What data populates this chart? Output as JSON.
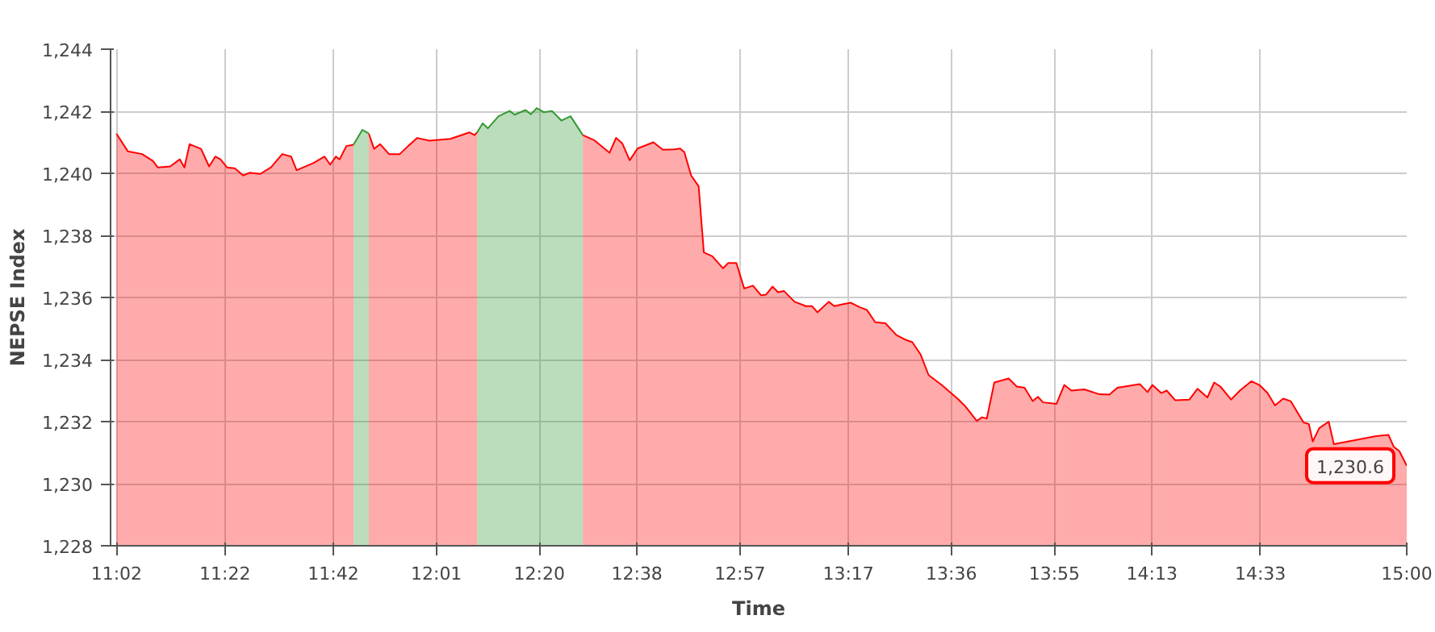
{
  "chart_data": {
    "type": "area",
    "xlabel": "Time",
    "ylabel": "NEPSE Index",
    "x": [
      11.033,
      11.068,
      11.112,
      11.145,
      11.16,
      11.198,
      11.228,
      11.242,
      11.258,
      11.293,
      11.318,
      11.337,
      11.353,
      11.373,
      11.397,
      11.423,
      11.443,
      11.475,
      11.508,
      11.543,
      11.57,
      11.587,
      11.638,
      11.673,
      11.69,
      11.708,
      11.719,
      11.74,
      11.762,
      11.789,
      11.809,
      11.825,
      11.844,
      11.871,
      11.904,
      11.93,
      11.958,
      11.995,
      12.06,
      12.118,
      12.134,
      12.142,
      12.159,
      12.175,
      12.208,
      12.242,
      12.257,
      12.291,
      12.307,
      12.325,
      12.347,
      12.372,
      12.401,
      12.429,
      12.467,
      12.503,
      12.549,
      12.569,
      12.588,
      12.611,
      12.635,
      12.684,
      12.713,
      12.749,
      12.766,
      12.779,
      12.8,
      12.823,
      12.839,
      12.865,
      12.898,
      12.914,
      12.939,
      12.963,
      12.99,
      13.015,
      13.03,
      13.05,
      13.067,
      13.085,
      13.118,
      13.153,
      13.172,
      13.188,
      13.223,
      13.24,
      13.265,
      13.291,
      13.317,
      13.34,
      13.366,
      13.397,
      13.431,
      13.456,
      13.48,
      13.505,
      13.53,
      13.57,
      13.619,
      13.644,
      13.678,
      13.694,
      13.709,
      13.732,
      13.776,
      13.801,
      13.825,
      13.85,
      13.866,
      13.882,
      13.923,
      13.947,
      13.969,
      14.008,
      14.055,
      14.086,
      14.11,
      14.133,
      14.179,
      14.203,
      14.218,
      14.245,
      14.262,
      14.288,
      14.332,
      14.357,
      14.387,
      14.408,
      14.427,
      14.46,
      14.487,
      14.522,
      14.547,
      14.572,
      14.595,
      14.62,
      14.643,
      14.683,
      14.699,
      14.711,
      14.731,
      14.76,
      14.776,
      14.906,
      14.944,
      14.96,
      14.977,
      15.0
    ],
    "series": [
      {
        "color": "#ff0000",
        "values": [
          1241.28,
          1240.71,
          1240.62,
          1240.4,
          1240.19,
          1240.22,
          1240.45,
          1240.19,
          1240.94,
          1240.79,
          1240.22,
          1240.54,
          1240.45,
          1240.19,
          1240.16,
          1239.93,
          1240.02,
          1239.98,
          1240.19,
          1240.62,
          1240.54,
          1240.1,
          1240.33,
          1240.54,
          1240.28,
          1240.54,
          1240.45,
          1240.88,
          1240.92,
          null,
          1241.28,
          1240.79,
          1240.94,
          1240.62,
          1240.62,
          1240.88,
          1241.14,
          1241.05,
          1241.11,
          1241.32,
          1241.23,
          1241.32,
          null,
          null,
          null,
          null,
          null,
          null,
          null,
          null,
          null,
          null,
          null,
          null,
          1241.23,
          1241.06,
          1240.66,
          1241.14,
          1240.97,
          1240.42,
          1240.8,
          1241.0,
          1240.76,
          1240.77,
          1240.8,
          1240.68,
          1239.93,
          1239.58,
          1237.45,
          1237.33,
          1236.94,
          1237.11,
          1237.11,
          1236.29,
          1236.38,
          1236.07,
          1236.09,
          1236.35,
          1236.17,
          1236.21,
          1235.86,
          1235.72,
          1235.72,
          1235.52,
          1235.86,
          1235.72,
          1235.78,
          1235.83,
          1235.69,
          1235.6,
          1235.2,
          1235.17,
          1234.79,
          1234.65,
          1234.56,
          1234.17,
          1233.5,
          1233.18,
          1232.74,
          1232.48,
          1232.02,
          1232.14,
          1232.1,
          1233.26,
          1233.39,
          1233.13,
          1233.09,
          1232.66,
          1232.8,
          1232.62,
          1232.57,
          1233.18,
          1233.0,
          1233.04,
          1232.88,
          1232.87,
          1233.09,
          1233.13,
          1233.21,
          1232.95,
          1233.18,
          1232.92,
          1233.0,
          1232.69,
          1232.71,
          1233.06,
          1232.78,
          1233.26,
          1233.13,
          1232.71,
          1233.0,
          1233.3,
          1233.18,
          1232.92,
          1232.52,
          1232.74,
          1232.66,
          1231.97,
          1231.92,
          1231.36,
          1231.79,
          1232.0,
          1231.27,
          1231.53,
          1231.57,
          1231.19,
          1231.05,
          1230.58
        ]
      },
      {
        "color": "#339933",
        "x": [
          11.762,
          11.789,
          11.809,
          11.825,
          12.142,
          12.159,
          12.175,
          12.208,
          12.242,
          12.257,
          12.291,
          12.307,
          12.325,
          12.347,
          12.372,
          12.401,
          12.429,
          12.467
        ],
        "values": [
          1240.92,
          1241.4,
          1241.28,
          null,
          1241.32,
          1241.61,
          1241.45,
          1241.84,
          1242.01,
          1241.89,
          1242.04,
          1241.9,
          1242.1,
          1241.97,
          1242.01,
          1241.7,
          1241.84,
          1241.23
        ]
      }
    ],
    "xlim": [
      11.015,
      15.0
    ],
    "xticks": [
      {
        "value": 11.0333,
        "label": "11:02"
      },
      {
        "value": 11.3667,
        "label": "11:22"
      },
      {
        "value": 11.7,
        "label": "11:42"
      },
      {
        "value": 12.0167,
        "label": "12:01"
      },
      {
        "value": 12.3333,
        "label": "12:20"
      },
      {
        "value": 12.6333,
        "label": "12:38"
      },
      {
        "value": 12.95,
        "label": "12:57"
      },
      {
        "value": 13.2833,
        "label": "13:17"
      },
      {
        "value": 13.6,
        "label": "13:36"
      },
      {
        "value": 13.9167,
        "label": "13:55"
      },
      {
        "value": 14.2167,
        "label": "14:13"
      },
      {
        "value": 14.55,
        "label": "14:33"
      },
      {
        "value": 15.0,
        "label": "15:00"
      }
    ],
    "ylim": [
      1228,
      1244
    ],
    "yticks": [
      {
        "value": 1228,
        "label": "1,228"
      },
      {
        "value": 1230,
        "label": "1,230"
      },
      {
        "value": 1232,
        "label": "1,232"
      },
      {
        "value": 1234,
        "label": "1,234"
      },
      {
        "value": 1236,
        "label": "1,236"
      },
      {
        "value": 1238,
        "label": "1,238"
      },
      {
        "value": 1240,
        "label": "1,240"
      },
      {
        "value": 1242,
        "label": "1,242"
      },
      {
        "value": 1244,
        "label": "1,244"
      }
    ],
    "grid": true,
    "annotations": [
      {
        "text": "1,230.6",
        "x": 15.0,
        "y": 1230.58
      }
    ]
  }
}
